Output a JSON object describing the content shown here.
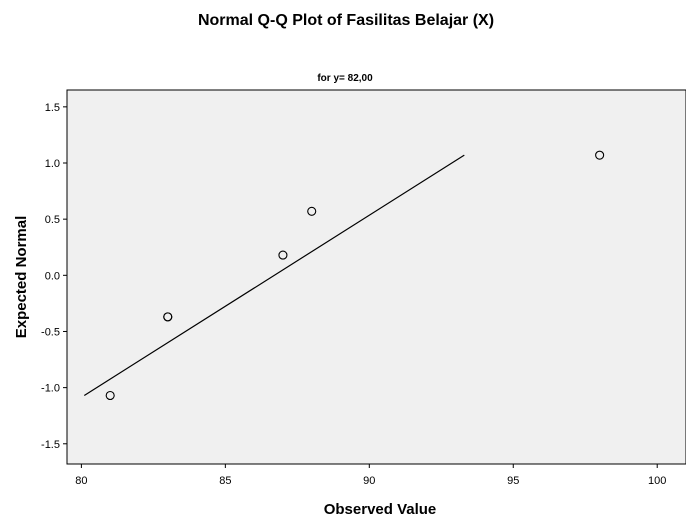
{
  "chart_data": {
    "type": "scatter",
    "title": "Normal Q-Q Plot of Fasilitas Belajar (X)",
    "subtitle": "for y= 82,00",
    "xlabel": "Observed Value",
    "ylabel": "Expected Normal",
    "xlim": [
      79.5,
      101
    ],
    "ylim": [
      -1.68,
      1.65
    ],
    "x_ticks": [
      80,
      85,
      90,
      95,
      100
    ],
    "x_tick_labels": [
      "80",
      "85",
      "90",
      "95",
      "100"
    ],
    "y_ticks": [
      1.5,
      1.0,
      0.5,
      0.0,
      -0.5,
      -1.0,
      -1.5
    ],
    "y_tick_labels": [
      "1.5",
      "1.0",
      "0.5",
      "0.0",
      "-0.5",
      "-1.0",
      "-1.5"
    ],
    "grid": false,
    "background_color": "#f0f0f0",
    "points": [
      {
        "x": 81,
        "y": -1.07
      },
      {
        "x": 83,
        "y": -0.37
      },
      {
        "x": 83,
        "y": -0.37
      },
      {
        "x": 87,
        "y": 0.18
      },
      {
        "x": 88,
        "y": 0.57
      },
      {
        "x": 98,
        "y": 1.07
      }
    ],
    "reference_line": {
      "x": [
        80.1,
        93.3
      ],
      "y": [
        -1.07,
        1.07
      ]
    }
  }
}
